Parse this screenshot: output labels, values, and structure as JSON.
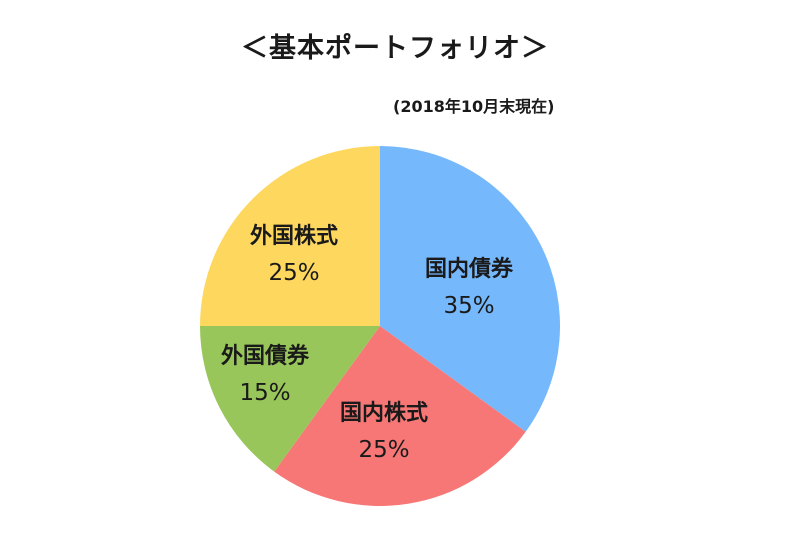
{
  "chart_data": {
    "type": "pie",
    "title": "＜基本ポートフォリオ＞",
    "subtitle": "(2018年10月末現在)",
    "slices": [
      {
        "label": "国内債券",
        "value": 35,
        "display": "35%",
        "color": "#76b8fc"
      },
      {
        "label": "国内株式",
        "value": 25,
        "display": "25%",
        "color": "#f77676"
      },
      {
        "label": "外国債券",
        "value": 15,
        "display": "15%",
        "color": "#99c65a"
      },
      {
        "label": "外国株式",
        "value": 25,
        "display": "25%",
        "color": "#fdd75e"
      }
    ]
  }
}
